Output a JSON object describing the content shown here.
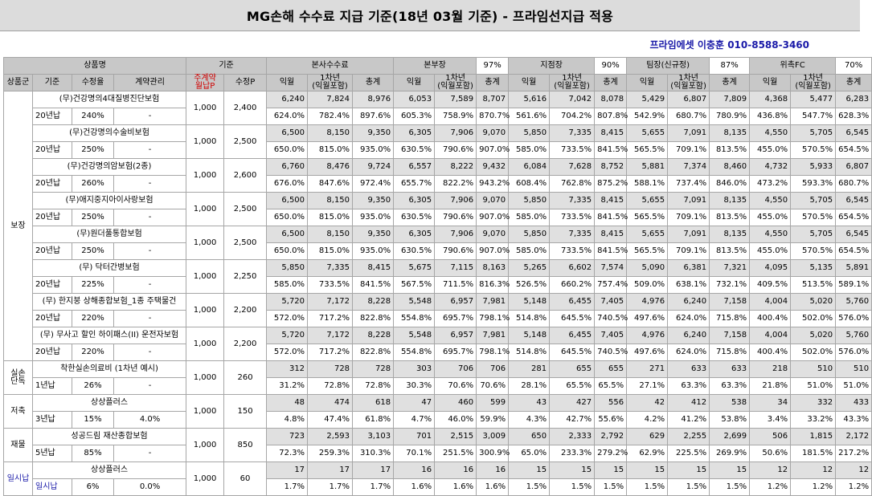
{
  "title": "MG손해 수수료 지급 기준(18년 03월 기준) - 프라임선지급 적용",
  "contact": "프라임에셋 이충훈 010-8588-3460",
  "header": {
    "product_name": "상품명",
    "basis": "기준",
    "hq": "본사수수료",
    "bonbujang": "본부장",
    "bonbujang_rate": "97%",
    "branch": "지점장",
    "branch_rate": "90%",
    "team": "팀장(신규정)",
    "team_rate": "87%",
    "fc": "위촉FC",
    "fc_rate": "70%",
    "group": "상품군",
    "criteria": "기준",
    "rate": "수정율",
    "contract": "계약관리",
    "main_contract": "주계약\n월납P",
    "adj_p": "수정P",
    "ik": "익월",
    "y1": "1차년\n(익월포함)",
    "total": "총계"
  },
  "groups": [
    {
      "name": "보장",
      "products": [
        {
          "name": "(무)건강명의4대질병진단보험",
          "term": "20년납",
          "rate": "240%",
          "mgmt": "-",
          "main": "1,000",
          "adj": "2,400",
          "amt": [
            "6,240",
            "7,824",
            "8,976",
            "6,053",
            "7,589",
            "8,707",
            "5,616",
            "7,042",
            "8,078",
            "5,429",
            "6,807",
            "7,809",
            "4,368",
            "5,477",
            "6,283"
          ],
          "pct": [
            "624.0%",
            "782.4%",
            "897.6%",
            "605.3%",
            "758.9%",
            "870.7%",
            "561.6%",
            "704.2%",
            "807.8%",
            "542.9%",
            "680.7%",
            "780.9%",
            "436.8%",
            "547.7%",
            "628.3%"
          ]
        },
        {
          "name": "(무)건강명의수술비보험",
          "term": "20년납",
          "rate": "250%",
          "mgmt": "-",
          "main": "1,000",
          "adj": "2,500",
          "amt": [
            "6,500",
            "8,150",
            "9,350",
            "6,305",
            "7,906",
            "9,070",
            "5,850",
            "7,335",
            "8,415",
            "5,655",
            "7,091",
            "8,135",
            "4,550",
            "5,705",
            "6,545"
          ],
          "pct": [
            "650.0%",
            "815.0%",
            "935.0%",
            "630.5%",
            "790.6%",
            "907.0%",
            "585.0%",
            "733.5%",
            "841.5%",
            "565.5%",
            "709.1%",
            "813.5%",
            "455.0%",
            "570.5%",
            "654.5%"
          ]
        },
        {
          "name": "(무)건강명의암보험(2종)",
          "term": "20년납",
          "rate": "260%",
          "mgmt": "-",
          "main": "1,000",
          "adj": "2,600",
          "amt": [
            "6,760",
            "8,476",
            "9,724",
            "6,557",
            "8,222",
            "9,432",
            "6,084",
            "7,628",
            "8,752",
            "5,881",
            "7,374",
            "8,460",
            "4,732",
            "5,933",
            "6,807"
          ],
          "pct": [
            "676.0%",
            "847.6%",
            "972.4%",
            "655.7%",
            "822.2%",
            "943.2%",
            "608.4%",
            "762.8%",
            "875.2%",
            "588.1%",
            "737.4%",
            "846.0%",
            "473.2%",
            "593.3%",
            "680.7%"
          ]
        },
        {
          "name": "(무)애지중지아이사랑보험",
          "term": "20년납",
          "rate": "250%",
          "mgmt": "-",
          "main": "1,000",
          "adj": "2,500",
          "amt": [
            "6,500",
            "8,150",
            "9,350",
            "6,305",
            "7,906",
            "9,070",
            "5,850",
            "7,335",
            "8,415",
            "5,655",
            "7,091",
            "8,135",
            "4,550",
            "5,705",
            "6,545"
          ],
          "pct": [
            "650.0%",
            "815.0%",
            "935.0%",
            "630.5%",
            "790.6%",
            "907.0%",
            "585.0%",
            "733.5%",
            "841.5%",
            "565.5%",
            "709.1%",
            "813.5%",
            "455.0%",
            "570.5%",
            "654.5%"
          ]
        },
        {
          "name": "(무)원더풀통합보험",
          "term": "20년납",
          "rate": "250%",
          "mgmt": "-",
          "main": "1,000",
          "adj": "2,500",
          "amt": [
            "6,500",
            "8,150",
            "9,350",
            "6,305",
            "7,906",
            "9,070",
            "5,850",
            "7,335",
            "8,415",
            "5,655",
            "7,091",
            "8,135",
            "4,550",
            "5,705",
            "6,545"
          ],
          "pct": [
            "650.0%",
            "815.0%",
            "935.0%",
            "630.5%",
            "790.6%",
            "907.0%",
            "585.0%",
            "733.5%",
            "841.5%",
            "565.5%",
            "709.1%",
            "813.5%",
            "455.0%",
            "570.5%",
            "654.5%"
          ]
        },
        {
          "name": "(무) 닥터간병보험",
          "term": "20년납",
          "rate": "225%",
          "mgmt": "-",
          "main": "1,000",
          "adj": "2,250",
          "amt": [
            "5,850",
            "7,335",
            "8,415",
            "5,675",
            "7,115",
            "8,163",
            "5,265",
            "6,602",
            "7,574",
            "5,090",
            "6,381",
            "7,321",
            "4,095",
            "5,135",
            "5,891"
          ],
          "pct": [
            "585.0%",
            "733.5%",
            "841.5%",
            "567.5%",
            "711.5%",
            "816.3%",
            "526.5%",
            "660.2%",
            "757.4%",
            "509.0%",
            "638.1%",
            "732.1%",
            "409.5%",
            "513.5%",
            "589.1%"
          ]
        },
        {
          "name": "(무) 한지붕 상해종합보험_1종 주택물건",
          "term": "20년납",
          "rate": "220%",
          "mgmt": "-",
          "main": "1,000",
          "adj": "2,200",
          "amt": [
            "5,720",
            "7,172",
            "8,228",
            "5,548",
            "6,957",
            "7,981",
            "5,148",
            "6,455",
            "7,405",
            "4,976",
            "6,240",
            "7,158",
            "4,004",
            "5,020",
            "5,760"
          ],
          "pct": [
            "572.0%",
            "717.2%",
            "822.8%",
            "554.8%",
            "695.7%",
            "798.1%",
            "514.8%",
            "645.5%",
            "740.5%",
            "497.6%",
            "624.0%",
            "715.8%",
            "400.4%",
            "502.0%",
            "576.0%"
          ]
        },
        {
          "name": "(무) 무사고 할인 하이패스(II) 운전자보험",
          "term": "20년납",
          "rate": "220%",
          "mgmt": "-",
          "main": "1,000",
          "adj": "2,200",
          "amt": [
            "5,720",
            "7,172",
            "8,228",
            "5,548",
            "6,957",
            "7,981",
            "5,148",
            "6,455",
            "7,405",
            "4,976",
            "6,240",
            "7,158",
            "4,004",
            "5,020",
            "5,760"
          ],
          "pct": [
            "572.0%",
            "717.2%",
            "822.8%",
            "554.8%",
            "695.7%",
            "798.1%",
            "514.8%",
            "645.5%",
            "740.5%",
            "497.6%",
            "624.0%",
            "715.8%",
            "400.4%",
            "502.0%",
            "576.0%"
          ]
        }
      ]
    },
    {
      "name": "실손\n단독",
      "products": [
        {
          "name": "착한실손의료비 (1차년 예시)",
          "term": "1년납",
          "rate": "26%",
          "mgmt": "-",
          "main": "1,000",
          "adj": "260",
          "amt": [
            "312",
            "728",
            "728",
            "303",
            "706",
            "706",
            "281",
            "655",
            "655",
            "271",
            "633",
            "633",
            "218",
            "510",
            "510"
          ],
          "pct": [
            "31.2%",
            "72.8%",
            "72.8%",
            "30.3%",
            "70.6%",
            "70.6%",
            "28.1%",
            "65.5%",
            "65.5%",
            "27.1%",
            "63.3%",
            "63.3%",
            "21.8%",
            "51.0%",
            "51.0%"
          ]
        }
      ]
    },
    {
      "name": "저축",
      "products": [
        {
          "name": "상상플러스",
          "term": "3년납",
          "rate": "15%",
          "mgmt": "4.0%",
          "main": "1,000",
          "adj": "150",
          "amt": [
            "48",
            "474",
            "618",
            "47",
            "460",
            "599",
            "43",
            "427",
            "556",
            "42",
            "412",
            "538",
            "34",
            "332",
            "433"
          ],
          "pct": [
            "4.8%",
            "47.4%",
            "61.8%",
            "4.7%",
            "46.0%",
            "59.9%",
            "4.3%",
            "42.7%",
            "55.6%",
            "4.2%",
            "41.2%",
            "53.8%",
            "3.4%",
            "33.2%",
            "43.3%"
          ]
        }
      ]
    },
    {
      "name": "재물",
      "products": [
        {
          "name": "성공드림 재산종합보험",
          "term": "5년납",
          "rate": "85%",
          "mgmt": "-",
          "main": "1,000",
          "adj": "850",
          "amt": [
            "723",
            "2,593",
            "3,103",
            "701",
            "2,515",
            "3,009",
            "650",
            "2,333",
            "2,792",
            "629",
            "2,255",
            "2,699",
            "506",
            "1,815",
            "2,172"
          ],
          "pct": [
            "72.3%",
            "259.3%",
            "310.3%",
            "70.1%",
            "251.5%",
            "300.9%",
            "65.0%",
            "233.3%",
            "279.2%",
            "62.9%",
            "225.5%",
            "269.9%",
            "50.6%",
            "181.5%",
            "217.2%"
          ]
        }
      ]
    },
    {
      "name": "일시납",
      "blue": true,
      "products": [
        {
          "name": "상상플러스",
          "term": "일시납",
          "rate": "6%",
          "mgmt": "0.0%",
          "main": "1,000",
          "adj": "60",
          "amt": [
            "17",
            "17",
            "17",
            "16",
            "16",
            "16",
            "15",
            "15",
            "15",
            "15",
            "15",
            "15",
            "12",
            "12",
            "12"
          ],
          "pct": [
            "1.7%",
            "1.7%",
            "1.7%",
            "1.6%",
            "1.6%",
            "1.6%",
            "1.5%",
            "1.5%",
            "1.5%",
            "1.5%",
            "1.5%",
            "1.5%",
            "1.2%",
            "1.2%",
            "1.2%"
          ]
        }
      ]
    }
  ]
}
